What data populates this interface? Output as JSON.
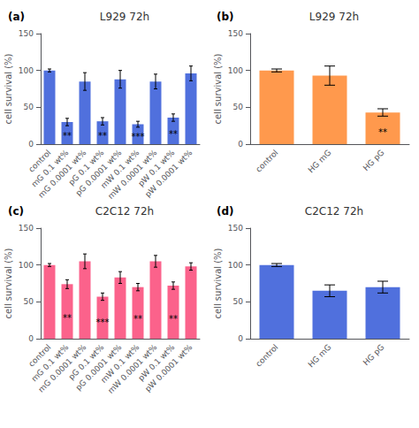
{
  "chart_data": [
    {
      "type": "bar",
      "title": "L929 72h",
      "label": "(a)",
      "ylabel": "cell survival (%)",
      "categories": [
        "control",
        "mG 0.1 wt%",
        "mG 0.0001 wt%",
        "pG 0.1 wt%",
        "pG 0.0001 wt%",
        "mW 0.1 wt%",
        "mW 0.0001 wt%",
        "pW 0.1 wt%",
        "pW 0.0001 wt%"
      ],
      "values": [
        100,
        30,
        85,
        31,
        88,
        27,
        85,
        36,
        96
      ],
      "errors": [
        2,
        5,
        12,
        5,
        12,
        4,
        10,
        5,
        10
      ],
      "sig": [
        null,
        "**",
        null,
        "**",
        null,
        "***",
        null,
        "**",
        null
      ],
      "ylim": [
        0,
        150
      ],
      "yticks": [
        0,
        50,
        100,
        150
      ],
      "grid": false
    },
    {
      "type": "bar",
      "title": "L929 72h",
      "label": "(b)",
      "ylabel": "cell survival (%)",
      "categories": [
        "control",
        "HG mG",
        "HG pG"
      ],
      "values": [
        100,
        93,
        43
      ],
      "errors": [
        2,
        13,
        5
      ],
      "sig": [
        null,
        null,
        "**"
      ],
      "ylim": [
        0,
        150
      ],
      "yticks": [
        0,
        50,
        100,
        150
      ],
      "grid": false
    },
    {
      "type": "bar",
      "title": "C2C12 72h",
      "label": "(c)",
      "ylabel": "cell survival (%)",
      "categories": [
        "control",
        "mG 0.1 wt%",
        "mG 0.0001 wt%",
        "pG 0.1 wt%",
        "pG 0.0001 wt%",
        "mW 0.1 wt%",
        "mW 0.0001 wt%",
        "pW 0.1 wt%",
        "pW 0.0001 wt%"
      ],
      "values": [
        100,
        74,
        105,
        57,
        83,
        70,
        105,
        72,
        98
      ],
      "errors": [
        2,
        6,
        10,
        5,
        8,
        5,
        8,
        5,
        5
      ],
      "sig": [
        null,
        "**",
        null,
        "***",
        null,
        "**",
        null,
        "**",
        null
      ],
      "ylim": [
        0,
        150
      ],
      "yticks": [
        0,
        50,
        100,
        150
      ],
      "grid": false
    },
    {
      "type": "bar",
      "title": "C2C12 72h",
      "label": "(d)",
      "ylabel": "cell survival (%)",
      "categories": [
        "control",
        "HG mG",
        "HG pG"
      ],
      "values": [
        100,
        65,
        70
      ],
      "errors": [
        2,
        8,
        8
      ],
      "sig": [
        null,
        null,
        null
      ],
      "ylim": [
        0,
        150
      ],
      "yticks": [
        0,
        50,
        100,
        150
      ],
      "grid": false
    }
  ]
}
